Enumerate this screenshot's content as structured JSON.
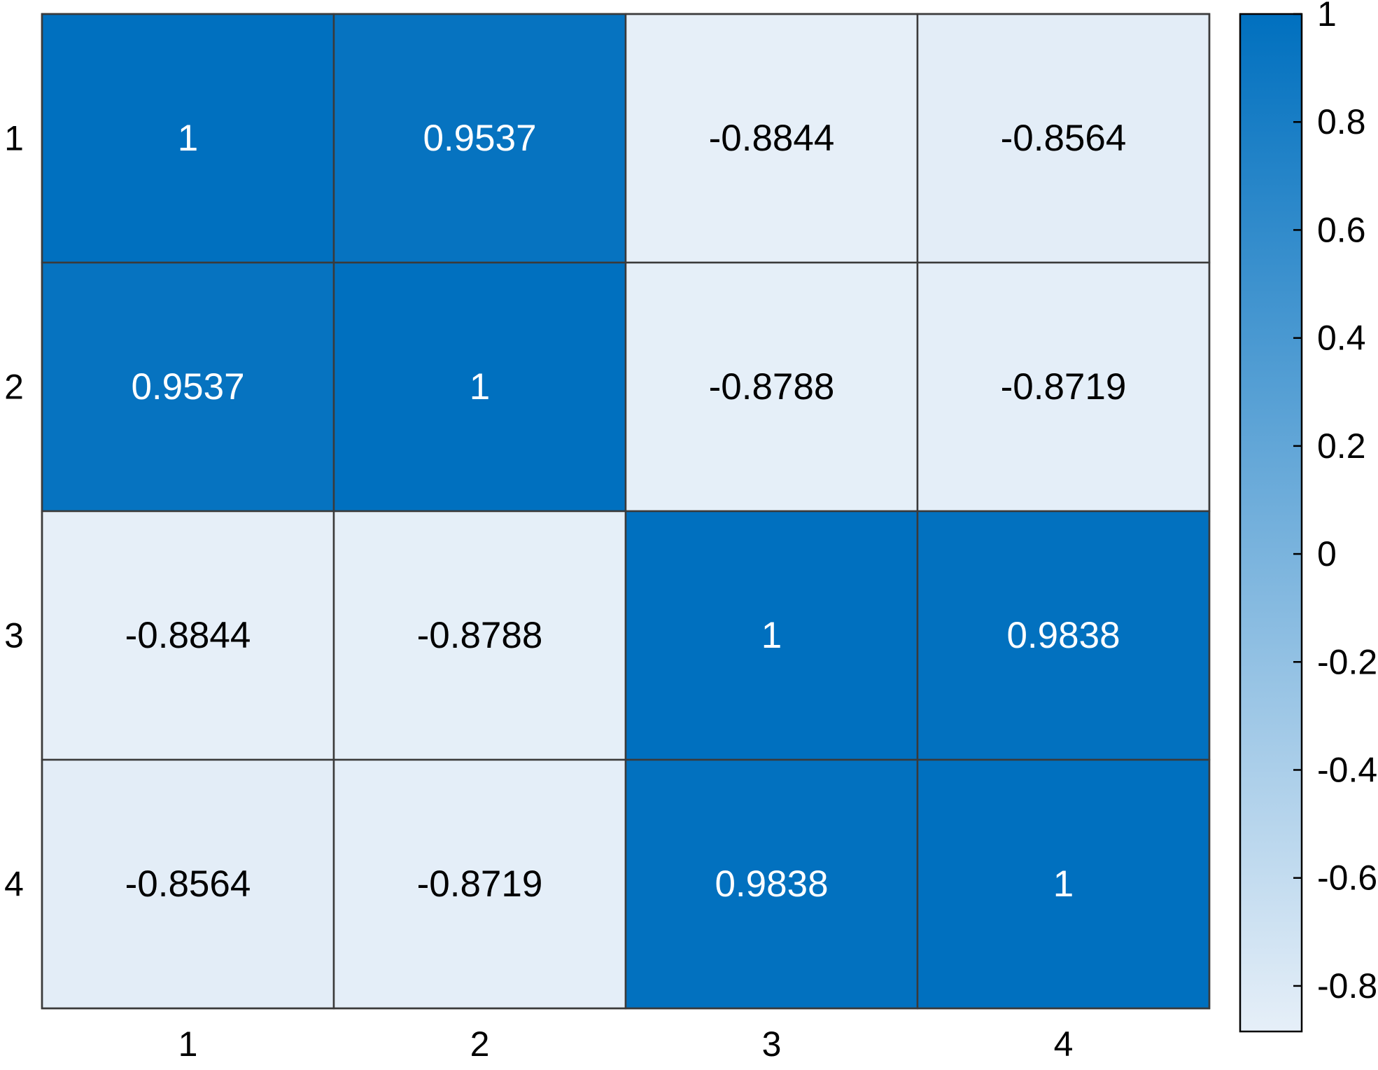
{
  "chart_data": {
    "type": "heatmap",
    "title": "",
    "xlabel": "",
    "ylabel": "",
    "x_categories": [
      "1",
      "2",
      "3",
      "4"
    ],
    "y_categories": [
      "1",
      "2",
      "3",
      "4"
    ],
    "values": [
      [
        1,
        0.9537,
        -0.8844,
        -0.8564
      ],
      [
        0.9537,
        1,
        -0.8788,
        -0.8719
      ],
      [
        -0.8844,
        -0.8788,
        1,
        0.9838
      ],
      [
        -0.8564,
        -0.8719,
        0.9838,
        1
      ]
    ],
    "value_labels": [
      [
        "1",
        "0.9537",
        "-0.8844",
        "-0.8564"
      ],
      [
        "0.9537",
        "1",
        "-0.8788",
        "-0.8719"
      ],
      [
        "-0.8844",
        "-0.8788",
        "1",
        "0.9838"
      ],
      [
        "-0.8564",
        "-0.8719",
        "0.9838",
        "1"
      ]
    ],
    "colorbar": {
      "range": [
        -0.8844,
        1
      ],
      "ticks": [
        1,
        0.8,
        0.6,
        0.4,
        0.2,
        0,
        -0.2,
        -0.4,
        -0.6,
        -0.8
      ],
      "tick_labels": [
        "1",
        "0.8",
        "0.6",
        "0.4",
        "0.2",
        "0",
        "-0.2",
        "-0.4",
        "-0.6",
        "-0.8"
      ],
      "placement": "right"
    },
    "colors": {
      "low": "#e6eff8",
      "high": "#0070bf",
      "grid_line": "#3a3a3a",
      "text_dark": "#000000",
      "text_light": "#ffffff"
    },
    "grid": true
  }
}
